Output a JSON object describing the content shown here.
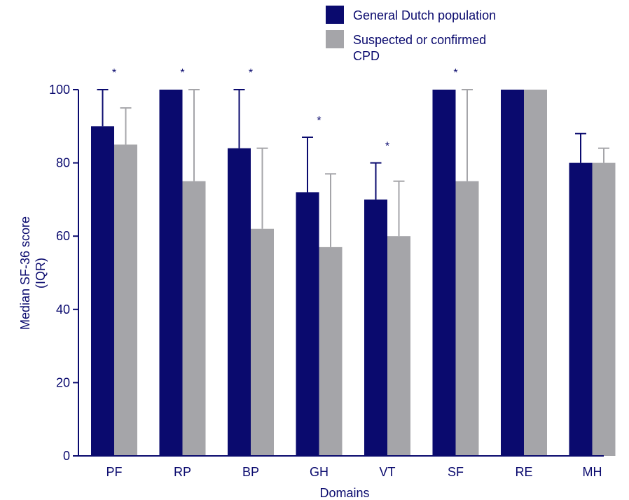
{
  "chart_data": {
    "type": "bar",
    "title": "",
    "xlabel": "Domains",
    "ylabel": "Median SF-36 score (IQR)",
    "ylabel_lines": [
      "Median SF-36 score",
      "(IQR)"
    ],
    "ylim": [
      0,
      100
    ],
    "yticks": [
      0,
      20,
      40,
      60,
      80,
      100
    ],
    "categories": [
      "PF",
      "RP",
      "BP",
      "GH",
      "VT",
      "SF",
      "RE",
      "MH"
    ],
    "legend_position": "top-right",
    "grid": false,
    "significance_marker": "*",
    "significant_categories": [
      "PF",
      "RP",
      "BP",
      "GH",
      "VT",
      "SF"
    ],
    "series": [
      {
        "name": "General Dutch population",
        "color": "#0a0a6e",
        "values": [
          90,
          100,
          84,
          72,
          70,
          100,
          100,
          80
        ],
        "upper": [
          100,
          100,
          100,
          87,
          80,
          100,
          100,
          88
        ]
      },
      {
        "name": "Suspected or confirmed CPD",
        "name_lines": [
          "Suspected or confirmed",
          "CPD"
        ],
        "color": "#a5a5a9",
        "values": [
          85,
          75,
          62,
          57,
          60,
          75,
          100,
          80
        ],
        "upper": [
          95,
          100,
          84,
          77,
          75,
          100,
          100,
          84
        ]
      }
    ]
  }
}
